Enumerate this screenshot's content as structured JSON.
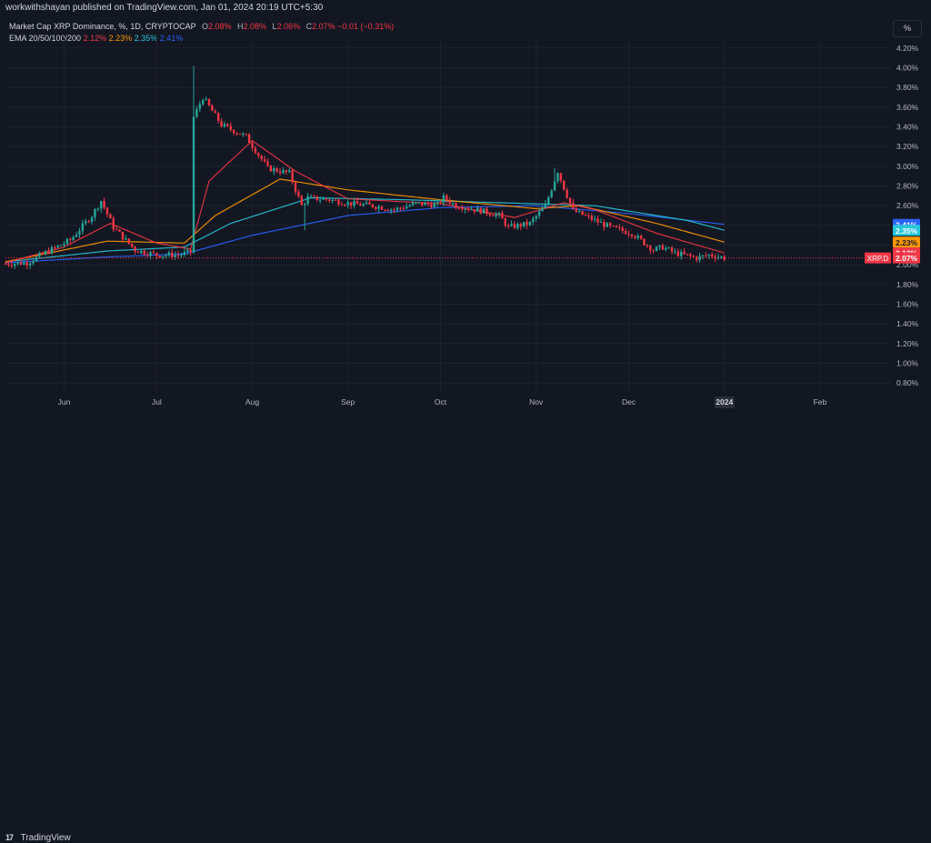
{
  "header": {
    "publisher": "workwithshayan published on TradingView.com, Jan 01, 2024 20:19 UTC+5:30"
  },
  "legend": {
    "symbol": "Market Cap XRP Dominance, %, 1D, CRYPTOCAP",
    "o_label": "O",
    "o_value": "2.08%",
    "h_label": "H",
    "h_value": "2.08%",
    "l_label": "L",
    "l_value": "2.06%",
    "c_label": "C",
    "c_value": "2.07%",
    "change": "−0.01 (−0.31%)",
    "ema_label": "EMA 20/50/100/200",
    "ema20": "2.12%",
    "ema50": "2.23%",
    "ema100": "2.35%",
    "ema200": "2.41%"
  },
  "scale_button": "%",
  "footer": {
    "brand": "TradingView",
    "brand_mark": "17"
  },
  "colors": {
    "background": "#131722",
    "grid": "#1e222d",
    "up": "#26a69a",
    "down": "#f23645",
    "ema20": "#f23645",
    "ema50": "#ff9800",
    "ema100": "#26c6da",
    "ema200": "#2962ff"
  },
  "chart_data": {
    "type": "candlestick",
    "title": "Market Cap XRP Dominance, %, 1D, CRYPTOCAP",
    "y_unit": "%",
    "ylim": [
      0.7,
      4.3
    ],
    "y_ticks": [
      "4.20%",
      "4.00%",
      "3.80%",
      "3.60%",
      "3.40%",
      "3.20%",
      "3.00%",
      "2.80%",
      "2.60%",
      "2.40%",
      "2.20%",
      "2.00%",
      "1.80%",
      "1.60%",
      "1.40%",
      "1.20%",
      "1.00%",
      "0.80%"
    ],
    "x_ticks": [
      "Jun",
      "Jul",
      "Aug",
      "Sep",
      "Oct",
      "Nov",
      "Dec",
      "2024",
      "Feb"
    ],
    "x_range": [
      "2023-05-13",
      "2024-02-24"
    ],
    "grid": true,
    "current_price_label": {
      "symbol": "XRP.D",
      "value": "2.07%"
    },
    "ema_badges": [
      {
        "value": "2.41%",
        "color": "#2962ff",
        "text_color": "#ffffff"
      },
      {
        "value": "2.35%",
        "color": "#26c6da",
        "text_color": "#ffffff"
      },
      {
        "value": "2.23%",
        "color": "#ff9800",
        "text_color": "#131722"
      },
      {
        "value": "2.12%",
        "color": "#f23645",
        "text_color": "#ffffff"
      }
    ],
    "close_anchors": [
      [
        "2023-05-13",
        2.01
      ],
      [
        "2023-05-20",
        2.02
      ],
      [
        "2023-05-27",
        2.14
      ],
      [
        "2023-06-03",
        2.25
      ],
      [
        "2023-06-10",
        2.5
      ],
      [
        "2023-06-13",
        2.65
      ],
      [
        "2023-06-17",
        2.38
      ],
      [
        "2023-06-24",
        2.15
      ],
      [
        "2023-07-01",
        2.1
      ],
      [
        "2023-07-08",
        2.1
      ],
      [
        "2023-07-12",
        2.13
      ],
      [
        "2023-07-13",
        3.5
      ],
      [
        "2023-07-16",
        3.7
      ],
      [
        "2023-07-22",
        3.42
      ],
      [
        "2023-07-30",
        3.3
      ],
      [
        "2023-08-06",
        2.98
      ],
      [
        "2023-08-13",
        2.93
      ],
      [
        "2023-08-17",
        2.6
      ],
      [
        "2023-08-19",
        2.68
      ],
      [
        "2023-08-26",
        2.66
      ],
      [
        "2023-09-02",
        2.62
      ],
      [
        "2023-09-09",
        2.6
      ],
      [
        "2023-09-16",
        2.56
      ],
      [
        "2023-09-23",
        2.62
      ],
      [
        "2023-09-30",
        2.61
      ],
      [
        "2023-10-02",
        2.68
      ],
      [
        "2023-10-06",
        2.6
      ],
      [
        "2023-10-14",
        2.55
      ],
      [
        "2023-10-20",
        2.5
      ],
      [
        "2023-10-23",
        2.38
      ],
      [
        "2023-10-30",
        2.42
      ],
      [
        "2023-11-04",
        2.6
      ],
      [
        "2023-11-08",
        2.95
      ],
      [
        "2023-11-10",
        2.78
      ],
      [
        "2023-11-13",
        2.55
      ],
      [
        "2023-11-18",
        2.48
      ],
      [
        "2023-11-25",
        2.38
      ],
      [
        "2023-12-02",
        2.32
      ],
      [
        "2023-12-09",
        2.15
      ],
      [
        "2023-12-12",
        2.18
      ],
      [
        "2023-12-16",
        2.12
      ],
      [
        "2023-12-23",
        2.07
      ],
      [
        "2023-12-27",
        2.1
      ],
      [
        "2024-01-01",
        2.07
      ]
    ],
    "ema_anchors": {
      "EMA 20": [
        [
          "2023-05-13",
          2.02
        ],
        [
          "2023-06-01",
          2.18
        ],
        [
          "2023-06-16",
          2.42
        ],
        [
          "2023-07-01",
          2.22
        ],
        [
          "2023-07-12",
          2.16
        ],
        [
          "2023-07-18",
          2.85
        ],
        [
          "2023-08-01",
          3.26
        ],
        [
          "2023-08-15",
          2.95
        ],
        [
          "2023-09-01",
          2.67
        ],
        [
          "2023-10-01",
          2.62
        ],
        [
          "2023-10-25",
          2.48
        ],
        [
          "2023-11-10",
          2.63
        ],
        [
          "2023-11-20",
          2.56
        ],
        [
          "2023-12-10",
          2.32
        ],
        [
          "2024-01-01",
          2.12
        ]
      ],
      "EMA 50": [
        [
          "2023-05-13",
          2.03
        ],
        [
          "2023-06-15",
          2.24
        ],
        [
          "2023-07-10",
          2.22
        ],
        [
          "2023-07-20",
          2.5
        ],
        [
          "2023-08-10",
          2.87
        ],
        [
          "2023-09-01",
          2.76
        ],
        [
          "2023-10-01",
          2.66
        ],
        [
          "2023-11-01",
          2.57
        ],
        [
          "2023-11-15",
          2.6
        ],
        [
          "2023-12-10",
          2.42
        ],
        [
          "2024-01-01",
          2.23
        ]
      ],
      "EMA 100": [
        [
          "2023-05-13",
          2.03
        ],
        [
          "2023-06-15",
          2.14
        ],
        [
          "2023-07-10",
          2.18
        ],
        [
          "2023-07-25",
          2.42
        ],
        [
          "2023-08-20",
          2.68
        ],
        [
          "2023-09-20",
          2.66
        ],
        [
          "2023-10-20",
          2.63
        ],
        [
          "2023-11-20",
          2.6
        ],
        [
          "2023-12-20",
          2.45
        ],
        [
          "2024-01-01",
          2.35
        ]
      ],
      "EMA 200": [
        [
          "2023-05-13",
          2.02
        ],
        [
          "2023-06-15",
          2.08
        ],
        [
          "2023-07-10",
          2.11
        ],
        [
          "2023-08-01",
          2.3
        ],
        [
          "2023-09-01",
          2.5
        ],
        [
          "2023-10-01",
          2.58
        ],
        [
          "2023-11-01",
          2.6
        ],
        [
          "2023-12-01",
          2.52
        ],
        [
          "2024-01-01",
          2.41
        ]
      ]
    }
  }
}
